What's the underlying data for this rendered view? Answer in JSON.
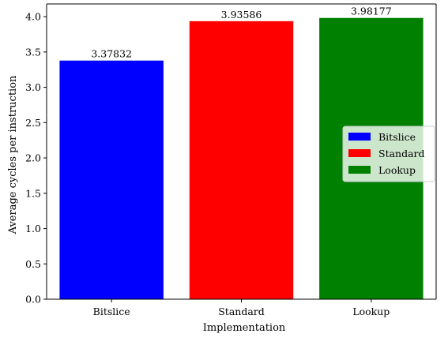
{
  "chart_data": {
    "type": "bar",
    "title": "",
    "xlabel": "Implementation",
    "ylabel": "Average cycles per instruction",
    "categories": [
      "Bitslice",
      "Standard",
      "Lookup"
    ],
    "values": [
      3.37832,
      3.93586,
      3.98177
    ],
    "value_labels": [
      "3.37832",
      "3.93586",
      "3.98177"
    ],
    "colors": [
      "#0000ff",
      "#ff0000",
      "#008000"
    ],
    "ylim": [
      0,
      4.18
    ],
    "yticks": [
      0.0,
      0.5,
      1.0,
      1.5,
      2.0,
      2.5,
      3.0,
      3.5,
      4.0
    ],
    "ytick_labels": [
      "0.0",
      "0.5",
      "1.0",
      "1.5",
      "2.0",
      "2.5",
      "3.0",
      "3.5",
      "4.0"
    ],
    "grid": false,
    "legend": {
      "position": "center-right",
      "entries": [
        {
          "label": "Bitslice",
          "color": "#0000ff"
        },
        {
          "label": "Standard",
          "color": "#ff0000"
        },
        {
          "label": "Lookup",
          "color": "#008000"
        }
      ]
    }
  }
}
